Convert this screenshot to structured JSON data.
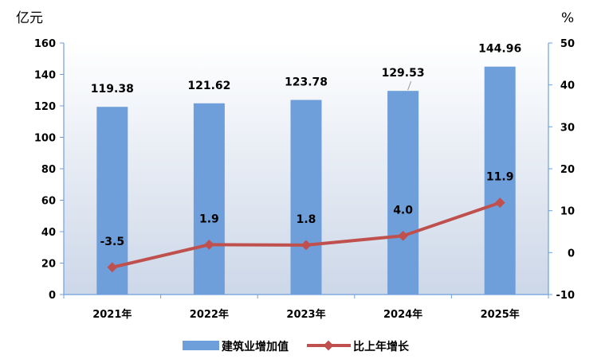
{
  "chart_data": {
    "type": "bar",
    "categories": [
      "2021年",
      "2022年",
      "2023年",
      "2024年",
      "2025年"
    ],
    "series": [
      {
        "name": "建筑业增加值",
        "type": "bar",
        "axis": "left",
        "values": [
          119.38,
          121.62,
          123.78,
          129.53,
          144.96
        ],
        "labels": [
          "119.38",
          "121.62",
          "123.78",
          "129.53",
          "144.96"
        ],
        "color": "#6f9fdb"
      },
      {
        "name": "比上年增长",
        "type": "line",
        "axis": "right",
        "values": [
          -3.5,
          1.9,
          1.8,
          4.0,
          11.9
        ],
        "labels": [
          "-3.5",
          "1.9",
          "1.8",
          "4.0",
          "11.9"
        ],
        "color": "#c0504d"
      }
    ],
    "y_left": {
      "unit": "亿元",
      "ylim": [
        0,
        160
      ],
      "ticks": [
        "0",
        "20",
        "40",
        "60",
        "80",
        "100",
        "120",
        "140",
        "160"
      ]
    },
    "y_right": {
      "unit": "%",
      "ylim": [
        -10,
        50
      ],
      "ticks": [
        "-10",
        "0",
        "10",
        "20",
        "30",
        "40",
        "50"
      ]
    },
    "grid": false,
    "legend": "bottom"
  }
}
